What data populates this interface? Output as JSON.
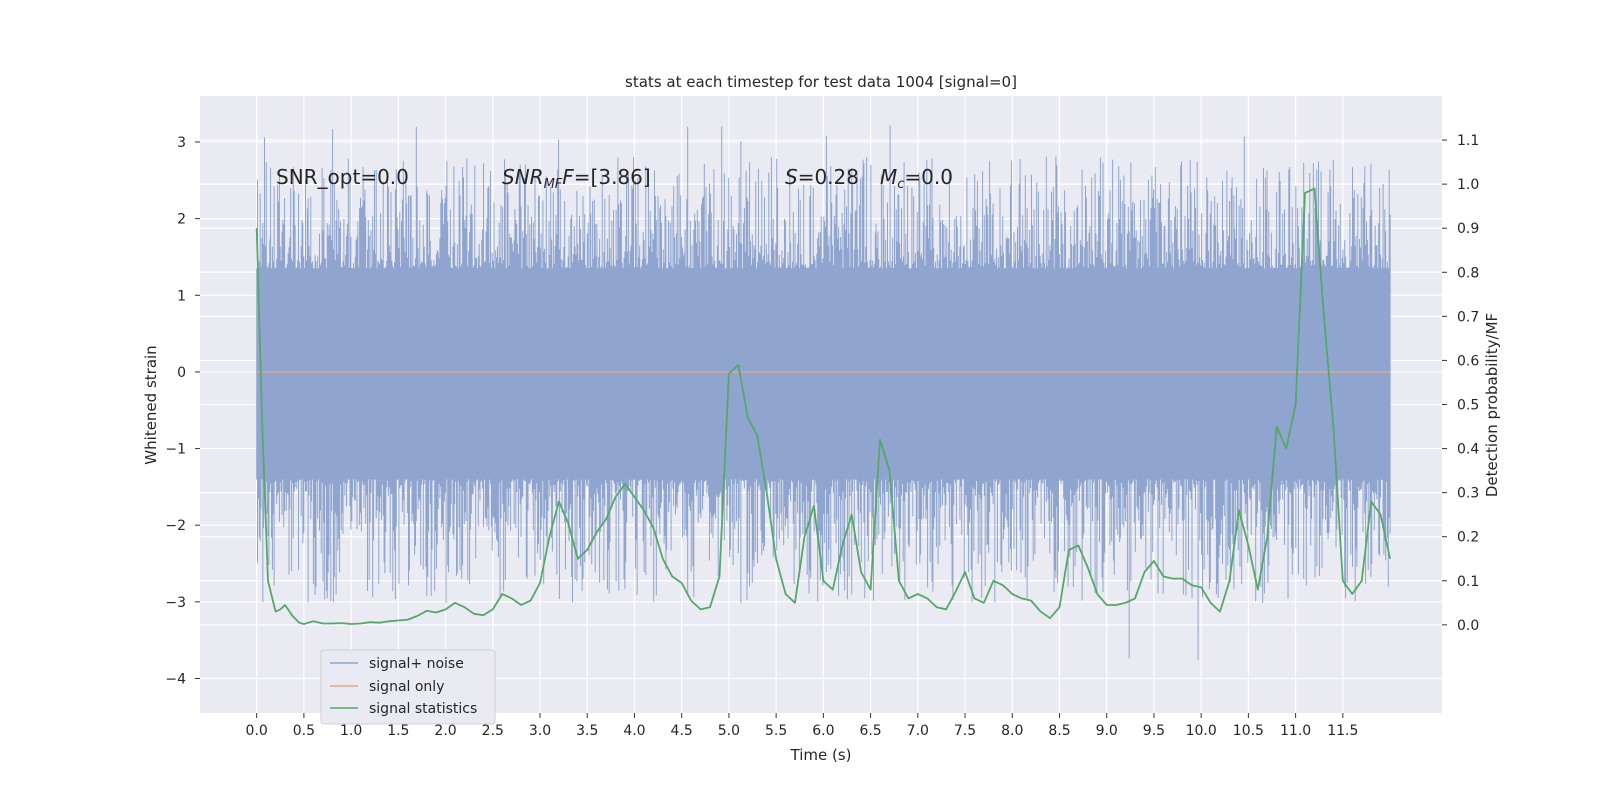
{
  "chart_data": {
    "type": "line",
    "title": "stats at each timestep for test data 1004 [signal=0]",
    "xlabel": "Time (s)",
    "ylabel": "Whitened strain",
    "ylabel_right": "Detection probability/MF",
    "xlim": [
      -0.6,
      12.55
    ],
    "ylim": [
      -4.45,
      3.6
    ],
    "ylim_right": [
      -0.2,
      1.2
    ],
    "x_ticks": [
      "0.0",
      "0.5",
      "1.0",
      "1.5",
      "2.0",
      "2.5",
      "3.0",
      "3.5",
      "4.0",
      "4.5",
      "5.0",
      "5.5",
      "6.0",
      "6.5",
      "7.0",
      "7.5",
      "8.0",
      "8.5",
      "9.0",
      "9.5",
      "10.0",
      "10.5",
      "11.0",
      "11.5"
    ],
    "y_ticks": [
      3,
      2,
      1,
      0,
      -1,
      -2,
      -3,
      -4
    ],
    "y_ticks_right": [
      "1.1",
      "1.0",
      "0.9",
      "0.8",
      "0.7",
      "0.6",
      "0.5",
      "0.4",
      "0.3",
      "0.2",
      "0.1",
      "0.0"
    ],
    "grid": true,
    "legend_position": "lower-left",
    "annotations": {
      "snr_opt": "SNR_opt=0.0",
      "snr_mf_label": "SNR",
      "snr_mf_sub": "MF",
      "snr_mf_value": "=[3.86]",
      "s_label": "S",
      "s_value": "=0.28",
      "mc_label": "M",
      "mc_sub": "c",
      "mc_value": "=0.0"
    },
    "series": [
      {
        "name": "signal+ noise",
        "color": "#8fa5cf",
        "axis": "left",
        "t_range": [
          0.0,
          12.0
        ],
        "band": {
          "core_low": -1.4,
          "core_high": 1.35,
          "extreme_low": -4.1,
          "extreme_high": 3.3
        }
      },
      {
        "name": "signal only",
        "color": "#e8a78b",
        "axis": "left",
        "x": [
          0.0,
          12.0
        ],
        "y": [
          0.0,
          0.0
        ]
      },
      {
        "name": "signal statistics",
        "color": "#55a868",
        "axis": "right",
        "x": [
          0.0,
          0.06,
          0.12,
          0.2,
          0.25,
          0.3,
          0.38,
          0.45,
          0.5,
          0.6,
          0.7,
          0.8,
          0.9,
          1.0,
          1.1,
          1.2,
          1.3,
          1.4,
          1.5,
          1.6,
          1.7,
          1.8,
          1.9,
          2.0,
          2.1,
          2.2,
          2.3,
          2.4,
          2.5,
          2.6,
          2.7,
          2.8,
          2.9,
          3.0,
          3.1,
          3.2,
          3.3,
          3.4,
          3.5,
          3.6,
          3.7,
          3.8,
          3.9,
          4.0,
          4.1,
          4.2,
          4.3,
          4.4,
          4.5,
          4.6,
          4.7,
          4.8,
          4.9,
          5.0,
          5.1,
          5.2,
          5.3,
          5.4,
          5.5,
          5.6,
          5.7,
          5.8,
          5.9,
          6.0,
          6.1,
          6.2,
          6.3,
          6.4,
          6.5,
          6.6,
          6.7,
          6.8,
          6.9,
          7.0,
          7.1,
          7.2,
          7.3,
          7.4,
          7.5,
          7.6,
          7.7,
          7.8,
          7.9,
          8.0,
          8.1,
          8.2,
          8.3,
          8.4,
          8.5,
          8.6,
          8.7,
          8.8,
          8.9,
          9.0,
          9.1,
          9.2,
          9.3,
          9.4,
          9.5,
          9.6,
          9.7,
          9.8,
          9.9,
          10.0,
          10.1,
          10.2,
          10.3,
          10.4,
          10.5,
          10.6,
          10.7,
          10.8,
          10.9,
          11.0,
          11.1,
          11.2,
          11.3,
          11.4,
          11.5,
          11.6,
          11.7,
          11.8,
          11.9,
          12.0
        ],
        "y": [
          0.9,
          0.45,
          0.1,
          0.03,
          0.035,
          0.045,
          0.02,
          0.005,
          0.002,
          0.008,
          0.003,
          0.003,
          0.004,
          0.002,
          0.003,
          0.006,
          0.005,
          0.008,
          0.01,
          0.012,
          0.02,
          0.032,
          0.028,
          0.035,
          0.05,
          0.04,
          0.025,
          0.022,
          0.035,
          0.07,
          0.06,
          0.045,
          0.055,
          0.095,
          0.2,
          0.28,
          0.23,
          0.15,
          0.17,
          0.21,
          0.24,
          0.29,
          0.32,
          0.29,
          0.26,
          0.22,
          0.15,
          0.11,
          0.095,
          0.055,
          0.035,
          0.04,
          0.11,
          0.57,
          0.59,
          0.47,
          0.43,
          0.3,
          0.15,
          0.07,
          0.05,
          0.2,
          0.27,
          0.1,
          0.08,
          0.18,
          0.25,
          0.12,
          0.08,
          0.42,
          0.35,
          0.1,
          0.06,
          0.07,
          0.06,
          0.04,
          0.035,
          0.075,
          0.12,
          0.06,
          0.05,
          0.1,
          0.09,
          0.07,
          0.06,
          0.055,
          0.03,
          0.015,
          0.04,
          0.17,
          0.18,
          0.13,
          0.07,
          0.045,
          0.045,
          0.05,
          0.06,
          0.12,
          0.145,
          0.11,
          0.105,
          0.105,
          0.09,
          0.085,
          0.05,
          0.03,
          0.1,
          0.26,
          0.18,
          0.08,
          0.2,
          0.45,
          0.4,
          0.5,
          0.98,
          0.99,
          0.7,
          0.45,
          0.1,
          0.07,
          0.1,
          0.28,
          0.25,
          0.15
        ]
      }
    ]
  }
}
